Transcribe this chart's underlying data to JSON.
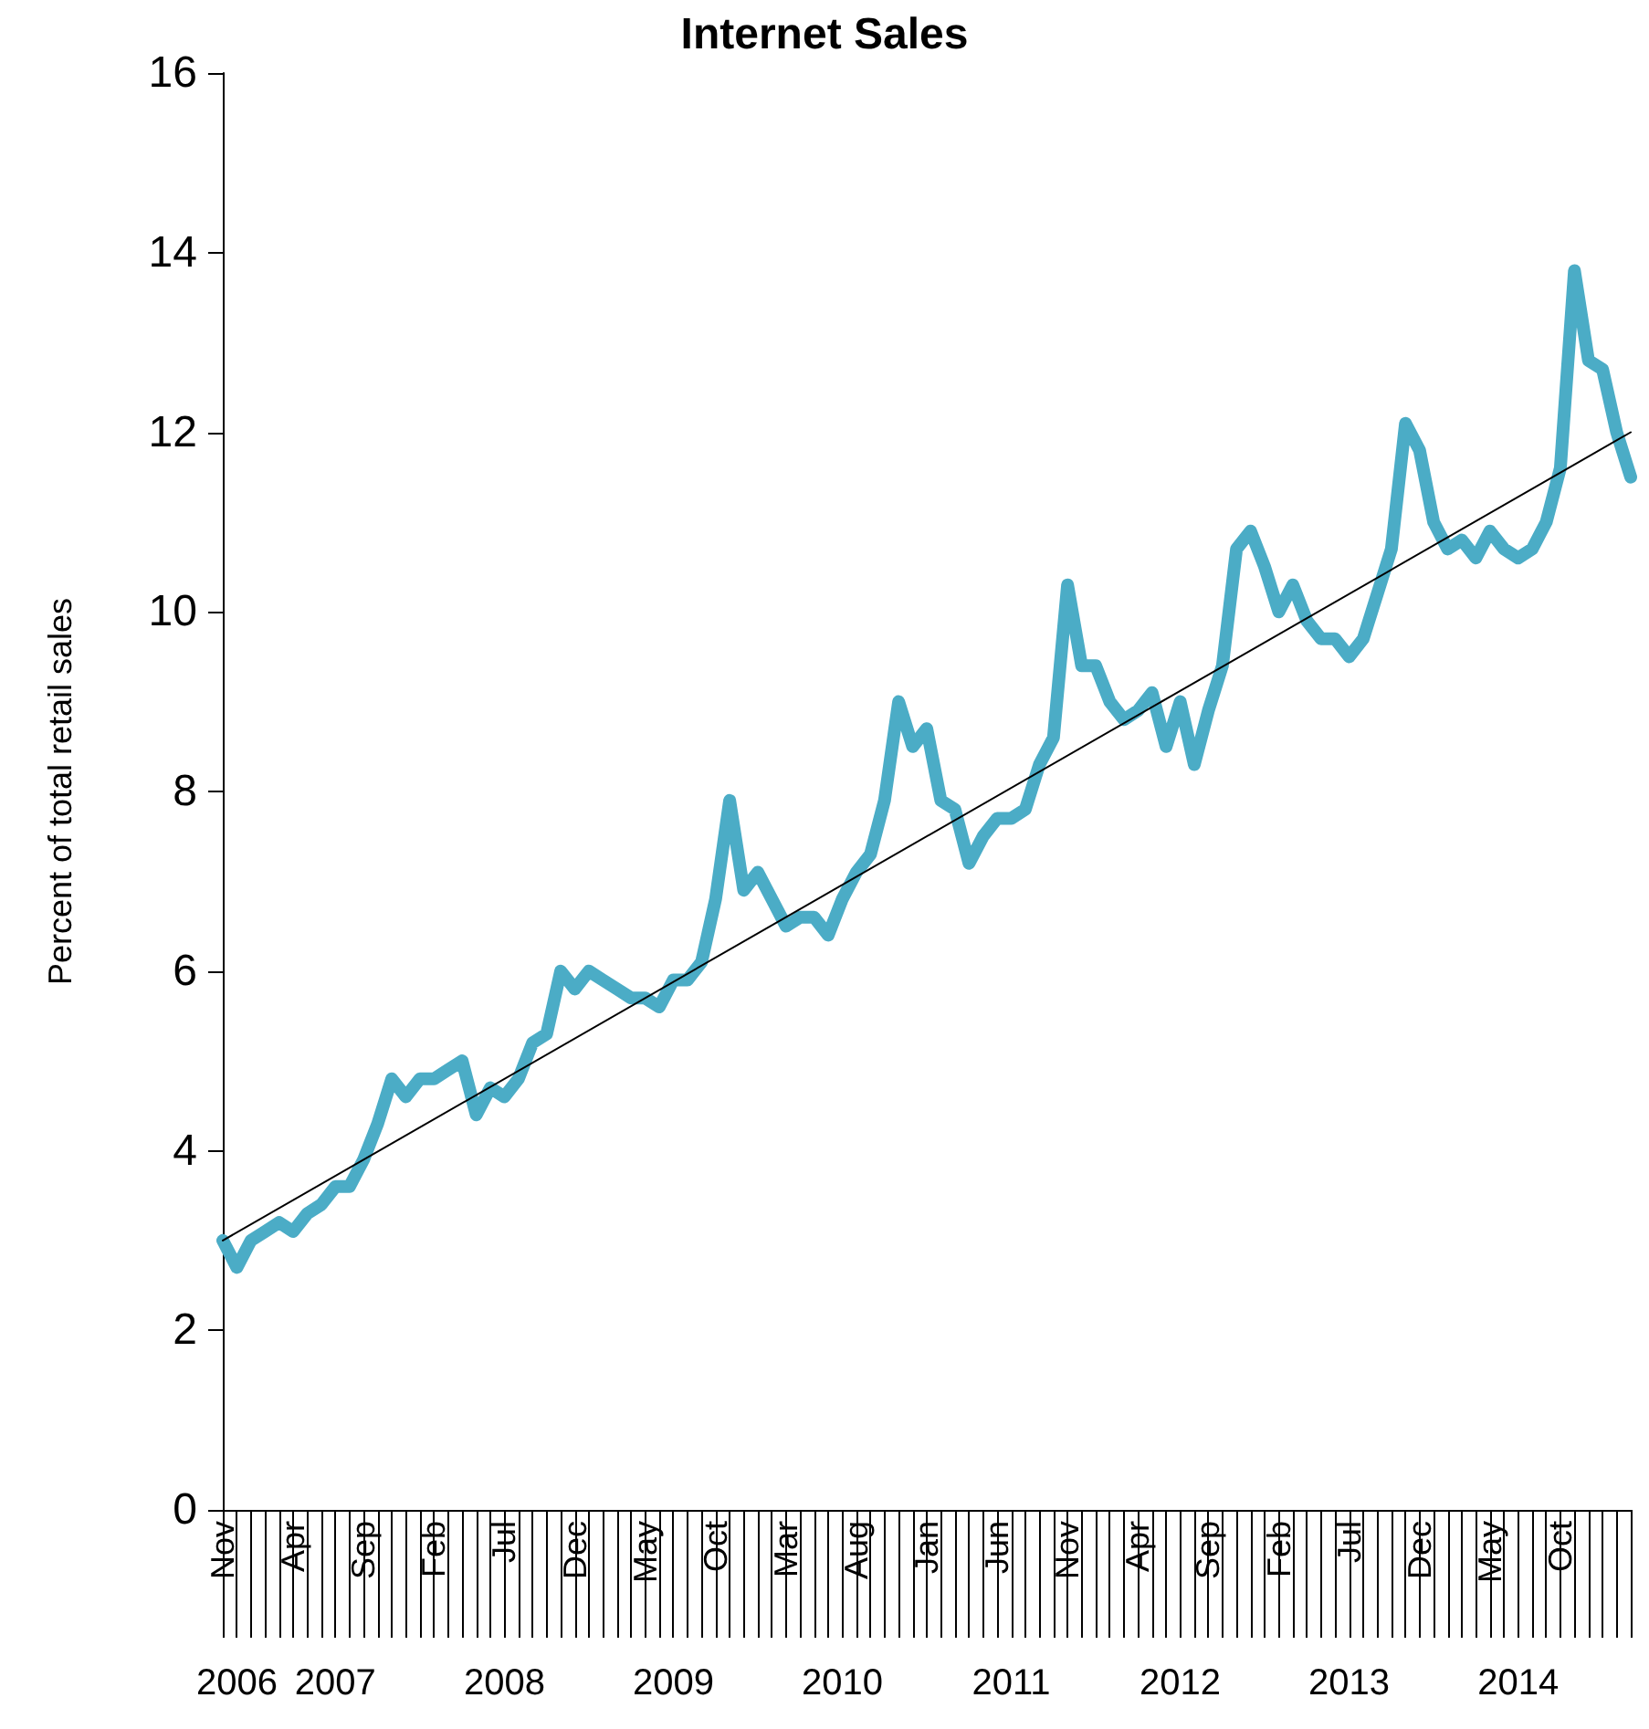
{
  "chart_data": {
    "type": "line",
    "title": "Internet Sales",
    "ylabel": "Percent of total retail sales",
    "x": [
      "2006-11",
      "2006-12",
      "2007-01",
      "2007-02",
      "2007-03",
      "2007-04",
      "2007-05",
      "2007-06",
      "2007-07",
      "2007-08",
      "2007-09",
      "2007-10",
      "2007-11",
      "2007-12",
      "2008-01",
      "2008-02",
      "2008-03",
      "2008-04",
      "2008-05",
      "2008-06",
      "2008-07",
      "2008-08",
      "2008-09",
      "2008-10",
      "2008-11",
      "2008-12",
      "2009-01",
      "2009-02",
      "2009-03",
      "2009-04",
      "2009-05",
      "2009-06",
      "2009-07",
      "2009-08",
      "2009-09",
      "2009-10",
      "2009-11",
      "2009-12",
      "2010-01",
      "2010-02",
      "2010-03",
      "2010-04",
      "2010-05",
      "2010-06",
      "2010-07",
      "2010-08",
      "2010-09",
      "2010-10",
      "2010-11",
      "2010-12",
      "2011-01",
      "2011-02",
      "2011-03",
      "2011-04",
      "2011-05",
      "2011-06",
      "2011-07",
      "2011-08",
      "2011-09",
      "2011-10",
      "2011-11",
      "2011-12",
      "2012-01",
      "2012-02",
      "2012-03",
      "2012-04",
      "2012-05",
      "2012-06",
      "2012-07",
      "2012-08",
      "2012-09",
      "2012-10",
      "2012-11",
      "2012-12",
      "2013-01",
      "2013-02",
      "2013-03",
      "2013-04",
      "2013-05",
      "2013-06",
      "2013-07",
      "2013-08",
      "2013-09",
      "2013-10",
      "2013-11",
      "2013-12",
      "2014-01",
      "2014-02",
      "2014-03",
      "2014-04",
      "2014-05",
      "2014-06",
      "2014-07",
      "2014-08",
      "2014-09",
      "2014-10",
      "2014-11",
      "2014-12",
      "2015-01",
      "2015-02",
      "2015-03"
    ],
    "xticks": [
      {
        "value": "2006-11",
        "label": "Nov"
      },
      {
        "value": "2007-04",
        "label": "Apr"
      },
      {
        "value": "2007-09",
        "label": "Sep"
      },
      {
        "value": "2008-02",
        "label": "Feb"
      },
      {
        "value": "2008-07",
        "label": "Jul"
      },
      {
        "value": "2008-12",
        "label": "Dec"
      },
      {
        "value": "2009-05",
        "label": "May"
      },
      {
        "value": "2009-10",
        "label": "Oct"
      },
      {
        "value": "2010-03",
        "label": "Mar"
      },
      {
        "value": "2010-08",
        "label": "Aug"
      },
      {
        "value": "2011-01",
        "label": "Jan"
      },
      {
        "value": "2011-06",
        "label": "Jun"
      },
      {
        "value": "2011-11",
        "label": "Nov"
      },
      {
        "value": "2012-04",
        "label": "Apr"
      },
      {
        "value": "2012-09",
        "label": "Sep"
      },
      {
        "value": "2013-02",
        "label": "Feb"
      },
      {
        "value": "2013-07",
        "label": "Jul"
      },
      {
        "value": "2013-12",
        "label": "Dec"
      },
      {
        "value": "2014-05",
        "label": "May"
      },
      {
        "value": "2014-10",
        "label": "Oct"
      }
    ],
    "series": [
      {
        "color": "#4bacc6",
        "values": [
          3.0,
          2.7,
          3.0,
          3.1,
          3.2,
          3.1,
          3.3,
          3.4,
          3.6,
          3.6,
          3.9,
          4.3,
          4.8,
          4.6,
          4.8,
          4.8,
          4.9,
          5.0,
          4.4,
          4.7,
          4.6,
          4.8,
          5.2,
          5.3,
          6.0,
          5.8,
          6.0,
          5.9,
          5.8,
          5.7,
          5.7,
          5.6,
          5.9,
          5.9,
          6.1,
          6.8,
          7.9,
          6.9,
          7.1,
          6.8,
          6.5,
          6.6,
          6.6,
          6.4,
          6.8,
          7.1,
          7.3,
          7.9,
          9.0,
          8.5,
          8.7,
          7.9,
          7.8,
          7.2,
          7.5,
          7.7,
          7.7,
          7.8,
          8.3,
          8.6,
          10.3,
          9.4,
          9.4,
          9.0,
          8.8,
          8.9,
          9.1,
          8.5,
          9.0,
          8.3,
          8.9,
          9.4,
          10.7,
          10.9,
          10.5,
          10.0,
          10.3,
          9.9,
          9.7,
          9.7,
          9.5,
          9.7,
          10.2,
          10.7,
          12.1,
          11.8,
          11.0,
          10.7,
          10.8,
          10.6,
          10.9,
          10.7,
          10.6,
          10.7,
          11.0,
          11.6,
          13.8,
          12.8,
          12.7,
          12.0,
          11.5
        ]
      },
      {
        "type": "line",
        "color": "#000000",
        "x": [
          "2006-11",
          "2015-03"
        ],
        "values": [
          3.0,
          12.0
        ]
      }
    ],
    "ylim": [
      0,
      16
    ],
    "yticks": [
      0,
      2,
      4,
      6,
      8,
      10,
      12,
      14,
      16
    ],
    "xlim": [
      "2006-11",
      "2015-03"
    ],
    "grid": false,
    "marker": "none",
    "annotations": [
      {
        "text": "2006",
        "x": "2006-12"
      },
      {
        "text": "2007",
        "x": "2007-07"
      },
      {
        "text": "2008",
        "x": "2008-07"
      },
      {
        "text": "2009",
        "x": "2009-07"
      },
      {
        "text": "2010",
        "x": "2010-07"
      },
      {
        "text": "2011",
        "x": "2011-07"
      },
      {
        "text": "2012",
        "x": "2012-07"
      },
      {
        "text": "2013",
        "x": "2013-07"
      },
      {
        "text": "2014",
        "x": "2014-07"
      }
    ]
  }
}
